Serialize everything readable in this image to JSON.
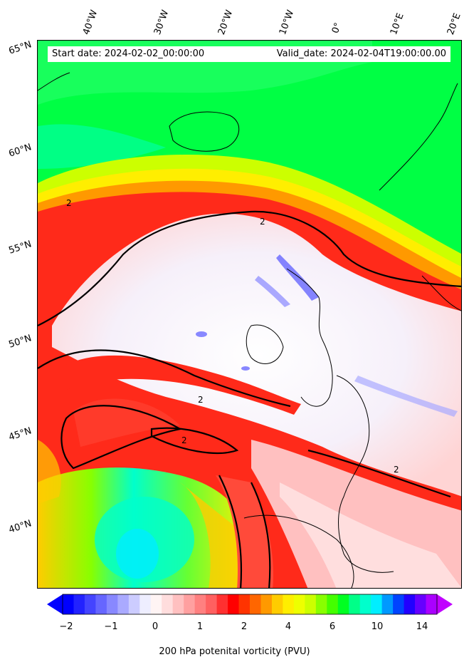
{
  "map": {
    "start_label": "Start date: 2024-02-02_00:00:00",
    "valid_label": "Valid_date: 2024-02-04T19:00:00.00",
    "contour_label": "2",
    "lon_labels": [
      "40°W",
      "30°W",
      "20°W",
      "10°W",
      "0°",
      "10°E",
      "20°E"
    ],
    "lat_labels": [
      "65°N",
      "60°N",
      "55°N",
      "50°N",
      "45°N",
      "40°N"
    ],
    "colors": {
      "green": "#00ff44",
      "yellow": "#ffff00",
      "orange": "#ff9900",
      "red": "#ff1a1a",
      "pink": "#ffcccc",
      "white": "#f4f0f8",
      "blue": "#7f7fff",
      "cyan": "#00ffee",
      "coast": "#000000"
    }
  },
  "colorbar": {
    "label": "200 hPa potenital vorticity (PVU)",
    "ticks": [
      "−2",
      "−1",
      "0",
      "1",
      "2",
      "4",
      "6",
      "10",
      "14"
    ],
    "colors": [
      "#0000ff",
      "#2222ff",
      "#4444ff",
      "#6666ff",
      "#8888ff",
      "#aaaaff",
      "#ccccff",
      "#eeeeff",
      "#fff4f4",
      "#ffdddd",
      "#ffc0c0",
      "#ffa0a0",
      "#ff8080",
      "#ff6060",
      "#ff3030",
      "#ff0000",
      "#ff3300",
      "#ff6600",
      "#ff9900",
      "#ffcc00",
      "#ffee00",
      "#eeff00",
      "#ccff00",
      "#88ff00",
      "#44ff00",
      "#00ff22",
      "#00ff88",
      "#00ffcc",
      "#00eeff",
      "#0099ff",
      "#0044ff",
      "#2200ff",
      "#6600ff",
      "#aa00ff"
    ],
    "min_color": "#0000ff",
    "max_color": "#c000ff"
  }
}
